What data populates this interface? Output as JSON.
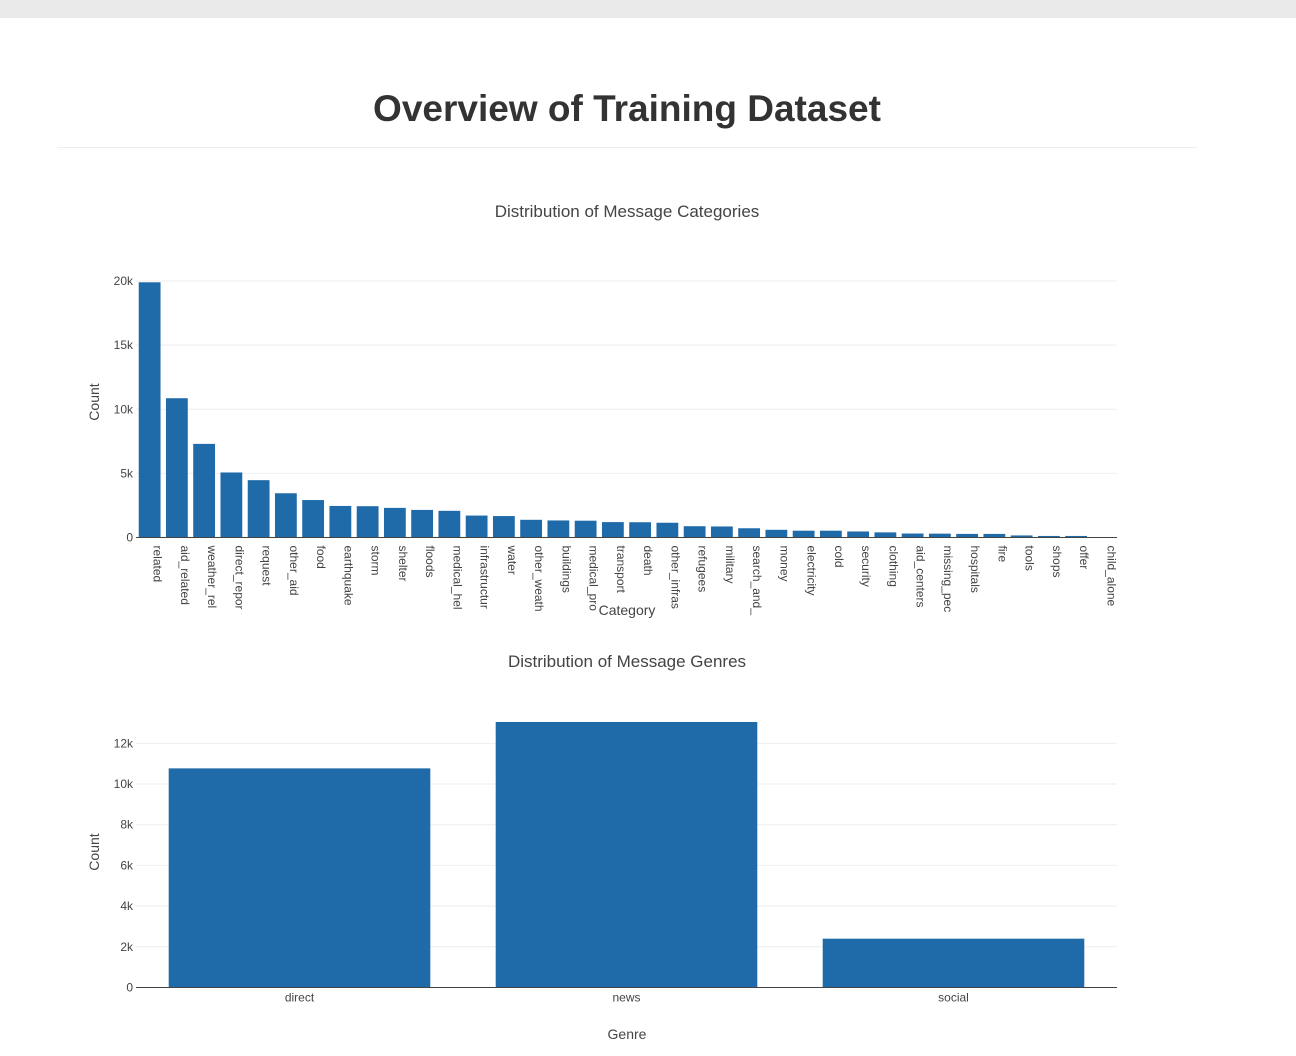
{
  "page": {
    "title": "Overview of Training Dataset"
  },
  "chart_data": [
    {
      "type": "bar",
      "title": "Distribution of Message Categories",
      "xlabel": "Category",
      "ylabel": "Count",
      "ylim": [
        0,
        20000
      ],
      "yticks": [
        0,
        5000,
        10000,
        15000,
        20000
      ],
      "ytick_labels": [
        "0",
        "5k",
        "10k",
        "15k",
        "20k"
      ],
      "tick_label_rotation": "vertical",
      "grid": "horizontal",
      "categories": [
        "related",
        "aid_related",
        "weather_related",
        "direct_report",
        "request",
        "other_aid",
        "food",
        "earthquake",
        "storm",
        "shelter",
        "floods",
        "medical_help",
        "infrastructure_related",
        "water",
        "other_weather",
        "buildings",
        "medical_products",
        "transport",
        "death",
        "other_infrastructure",
        "refugees",
        "military",
        "search_and_rescue",
        "money",
        "electricity",
        "cold",
        "security",
        "clothing",
        "aid_centers",
        "missing_people",
        "hospitals",
        "fire",
        "tools",
        "shops",
        "offer",
        "child_alone"
      ],
      "tick_labels": [
        "related",
        "aid_related",
        "weather_rel",
        "direct_repor",
        "request",
        "other_aid",
        "food",
        "earthquake",
        "storm",
        "shelter",
        "floods",
        "medical_hel",
        "infrastructur",
        "water",
        "other_weath",
        "buildings",
        "medical_pro",
        "transport",
        "death",
        "other_infras",
        "refugees",
        "military",
        "search_and_",
        "money",
        "electricity",
        "cold",
        "security",
        "clothing",
        "aid_centers",
        "missing_pec",
        "hospitals",
        "fire",
        "tools",
        "shops",
        "offer",
        "child_alone"
      ],
      "values": [
        19900,
        10860,
        7300,
        5070,
        4470,
        3450,
        2920,
        2460,
        2440,
        2310,
        2150,
        2080,
        1710,
        1670,
        1380,
        1330,
        1310,
        1200,
        1190,
        1150,
        880,
        860,
        720,
        600,
        530,
        530,
        470,
        400,
        310,
        300,
        280,
        280,
        160,
        120,
        120,
        0
      ],
      "color": "#1f6aa8"
    },
    {
      "type": "bar",
      "title": "Distribution of Message Genres",
      "xlabel": "Genre",
      "ylabel": "Count",
      "ylim": [
        0,
        13000
      ],
      "yticks": [
        0,
        2000,
        4000,
        6000,
        8000,
        10000,
        12000
      ],
      "ytick_labels": [
        "0",
        "2k",
        "4k",
        "6k",
        "8k",
        "10k",
        "12k"
      ],
      "grid": "horizontal",
      "categories": [
        "direct",
        "news",
        "social"
      ],
      "values": [
        10770,
        13050,
        2400
      ],
      "color": "#1f6aa8"
    }
  ]
}
